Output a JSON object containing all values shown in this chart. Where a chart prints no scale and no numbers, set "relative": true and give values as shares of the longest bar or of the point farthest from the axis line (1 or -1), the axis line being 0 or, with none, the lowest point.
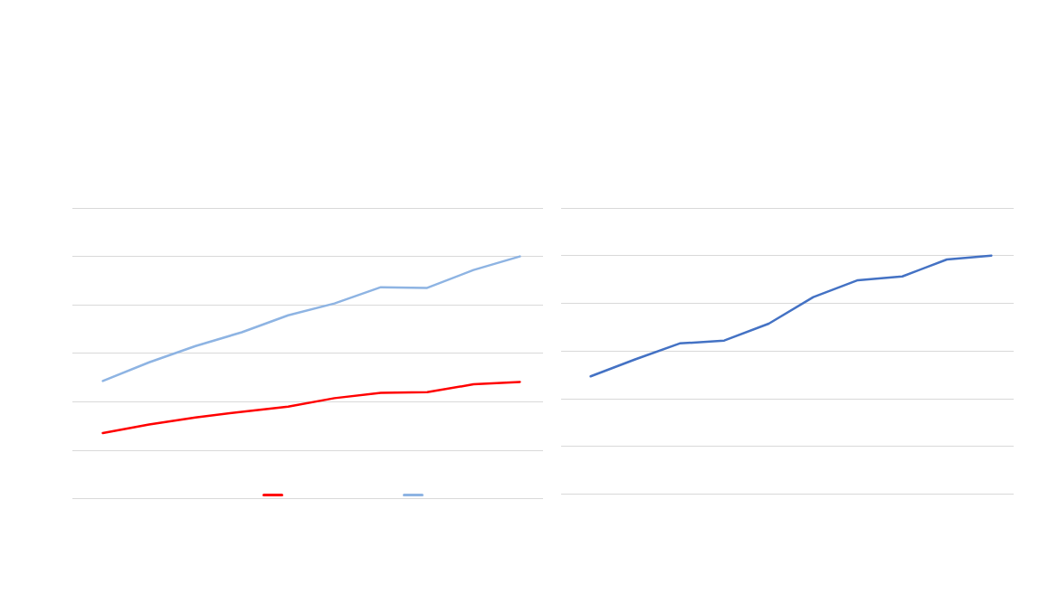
{
  "chart_data": [
    {
      "type": "line",
      "categories": [
        null,
        null,
        null,
        null,
        null,
        null,
        null,
        null,
        null,
        null
      ],
      "relative": true,
      "grid": "y",
      "marker": "none",
      "line_style": "solid",
      "series": [
        {
          "color": "#ff0000",
          "values": [
            0.271,
            0.306,
            0.335,
            0.359,
            0.38,
            0.415,
            0.437,
            0.44,
            0.472,
            0.482
          ]
        },
        {
          "color": "#8eb4e3",
          "values": [
            0.486,
            0.563,
            0.63,
            0.687,
            0.757,
            0.806,
            0.873,
            0.87,
            0.944,
            1
          ]
        }
      ]
    },
    {
      "type": "line",
      "categories": [
        null,
        null,
        null,
        null,
        null,
        null,
        null,
        null,
        null,
        null
      ],
      "relative": true,
      "grid": "y",
      "marker": "none",
      "line_style": "solid",
      "series": [
        {
          "color": "#4472c4",
          "values": [
            0.494,
            0.565,
            0.632,
            0.644,
            0.715,
            0.826,
            0.897,
            0.913,
            0.984,
            1
          ]
        }
      ]
    }
  ]
}
